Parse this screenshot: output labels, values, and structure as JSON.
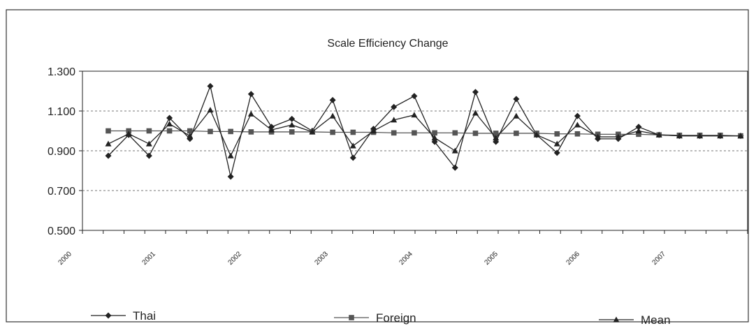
{
  "chart_data": {
    "type": "line",
    "title": "Scale Efficiency Change",
    "xlabel": "",
    "ylabel": "",
    "ylim": [
      0.5,
      1.3
    ],
    "yticks": [
      "1.300",
      "1.100",
      "0.900",
      "0.700",
      "0.500"
    ],
    "ytick_values": [
      1.3,
      1.1,
      0.9,
      0.7,
      0.5
    ],
    "xtick_labels": [
      "2000",
      "2001",
      "2002",
      "2003",
      "2004",
      "2005",
      "2006",
      "2007"
    ],
    "grid": true,
    "legend_position": "bottom",
    "x": [
      "2000Q1",
      "2000Q2",
      "2000Q3",
      "2000Q4",
      "2001Q1",
      "2001Q2",
      "2001Q3",
      "2001Q4",
      "2002Q1",
      "2002Q2",
      "2002Q3",
      "2002Q4",
      "2003Q1",
      "2003Q2",
      "2003Q3",
      "2003Q4",
      "2004Q1",
      "2004Q2",
      "2004Q3",
      "2004Q4",
      "2005Q1",
      "2005Q2",
      "2005Q3",
      "2005Q4",
      "2006Q1",
      "2006Q2",
      "2006Q3",
      "2006Q4",
      "2007Q1",
      "2007Q2",
      "2007Q3",
      "2007Q4"
    ],
    "series": [
      {
        "name": "Thai",
        "marker": "diamond",
        "color": "#222222",
        "values": [
          0.875,
          0.98,
          0.875,
          1.065,
          0.96,
          1.225,
          0.77,
          1.185,
          1.02,
          1.06,
          1.0,
          1.155,
          0.865,
          1.01,
          1.12,
          1.175,
          0.945,
          0.815,
          1.195,
          0.945,
          1.16,
          0.98,
          0.89,
          1.075,
          0.96,
          0.96,
          1.02,
          0.98,
          0.975,
          0.975,
          0.975,
          0.975
        ]
      },
      {
        "name": "Foreign",
        "marker": "square",
        "color": "#555555",
        "values": [
          1.0,
          1.0,
          1.0,
          1.0,
          1.0,
          0.997,
          0.997,
          0.995,
          0.995,
          0.995,
          0.995,
          0.993,
          0.993,
          0.993,
          0.99,
          0.99,
          0.99,
          0.99,
          0.988,
          0.988,
          0.988,
          0.988,
          0.985,
          0.985,
          0.983,
          0.983,
          0.983,
          0.98,
          0.978,
          0.978,
          0.978,
          0.975
        ]
      },
      {
        "name": "Mean",
        "marker": "triangle",
        "color": "#222222",
        "values": [
          0.935,
          0.985,
          0.935,
          1.035,
          0.975,
          1.105,
          0.875,
          1.085,
          1.005,
          1.03,
          0.995,
          1.075,
          0.925,
          1.0,
          1.055,
          1.08,
          0.965,
          0.9,
          1.09,
          0.965,
          1.075,
          0.98,
          0.935,
          1.03,
          0.97,
          0.97,
          1.0,
          0.98,
          0.975,
          0.975,
          0.975,
          0.975
        ]
      }
    ]
  }
}
